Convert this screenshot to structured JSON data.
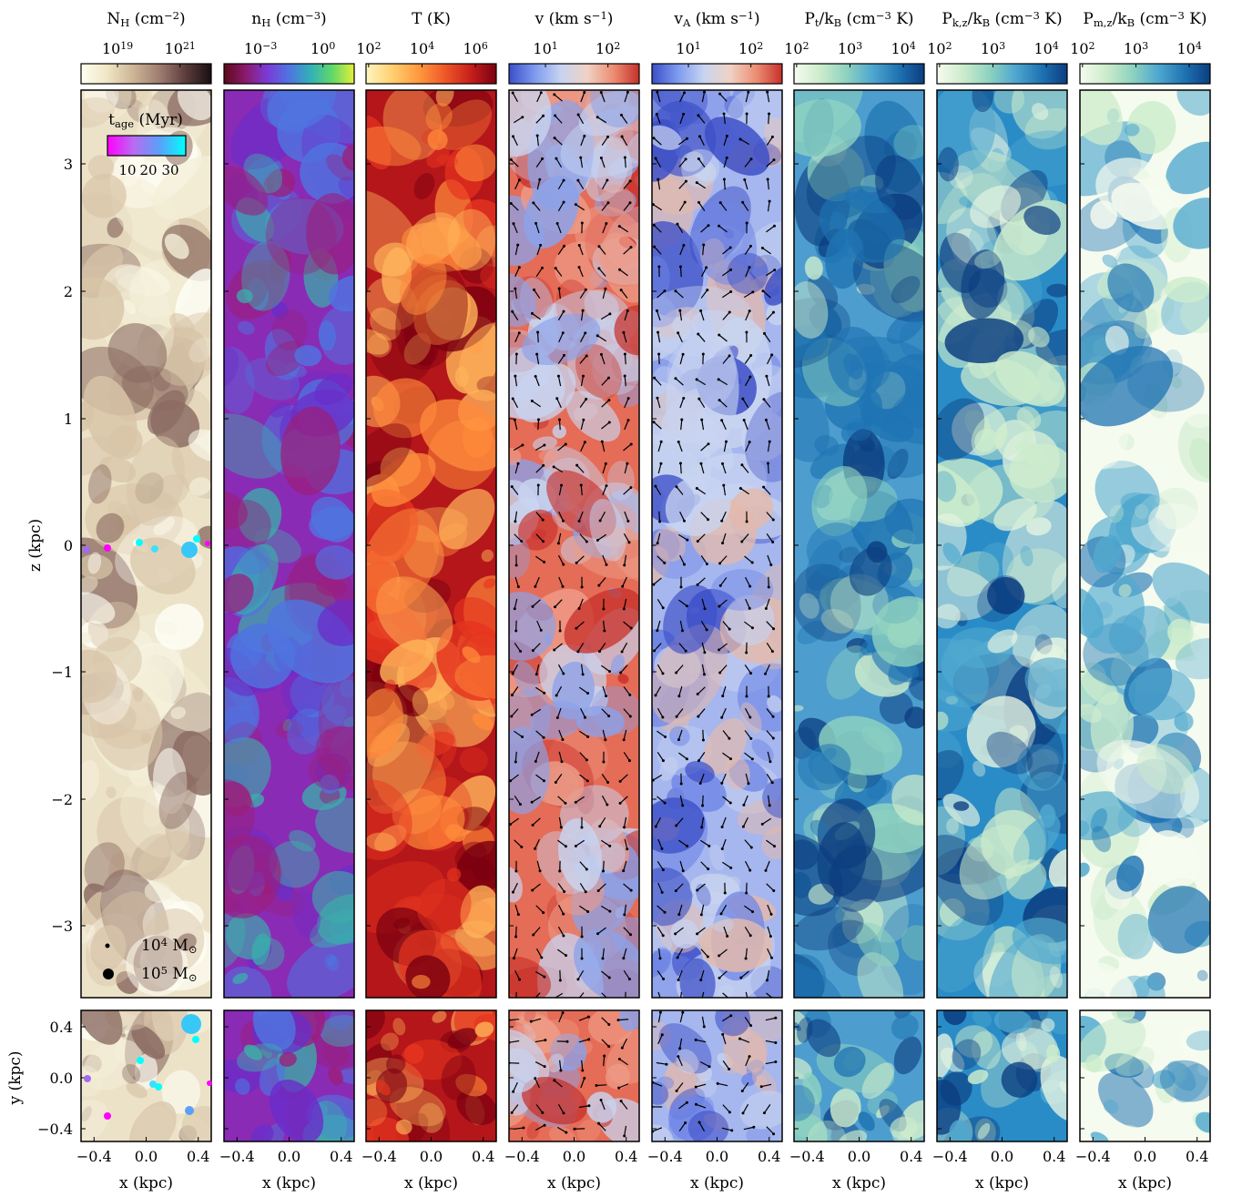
{
  "panels": [
    {
      "title": "N",
      "title_sub": "H",
      "title_unit": " (cm",
      "title_sup": "−2",
      "title_end": ")",
      "ticks": [
        {
          "base": "10",
          "exp": "19"
        },
        {
          "base": "10",
          "exp": "21"
        }
      ],
      "cmap": [
        "#fffff0",
        "#efe6c4",
        "#cdb596",
        "#9f7e70",
        "#5c3e3d",
        "#1a0e10"
      ]
    },
    {
      "title": "n",
      "title_sub": "H",
      "title_unit": " (cm",
      "title_sup": "−3",
      "title_end": ")",
      "ticks": [
        {
          "base": "10",
          "exp": "−3"
        },
        {
          "base": "10",
          "exp": "0"
        }
      ],
      "cmap": [
        "#5a0a18",
        "#8c1a6e",
        "#7a3bd6",
        "#4f74e0",
        "#32b1b8",
        "#62d867",
        "#e4ef3a"
      ]
    },
    {
      "title": "T (K)",
      "title_sub": "",
      "title_unit": "",
      "title_sup": "",
      "title_end": "",
      "ticks": [
        {
          "base": "10",
          "exp": "2"
        },
        {
          "base": "10",
          "exp": "4"
        },
        {
          "base": "10",
          "exp": "6"
        }
      ],
      "cmap": [
        "#fff6c0",
        "#ffd070",
        "#ff9a40",
        "#f05a28",
        "#c8201c",
        "#7a0010"
      ]
    },
    {
      "title": "v (km s",
      "title_sub": "",
      "title_unit": "",
      "title_sup": "−1",
      "title_end": ")",
      "ticks": [
        {
          "base": "10",
          "exp": "1"
        },
        {
          "base": "10",
          "exp": "2"
        }
      ],
      "cmap": [
        "#3a4fc8",
        "#7f9bef",
        "#c8d4f0",
        "#f0d2c4",
        "#ec8e74",
        "#c6302a"
      ]
    },
    {
      "title": "v",
      "title_sub": "A",
      "title_unit": " (km s",
      "title_sup": "−1",
      "title_end": ")",
      "ticks": [
        {
          "base": "10",
          "exp": "1"
        },
        {
          "base": "10",
          "exp": "2"
        }
      ],
      "cmap": [
        "#3a4fc8",
        "#7f9bef",
        "#c8d4f0",
        "#f0d2c4",
        "#ec8e74",
        "#c6302a"
      ]
    },
    {
      "title": "P",
      "title_sub": "t",
      "title_unit": "/k",
      "title_sub2": "B",
      "title_rest": " (cm",
      "title_sup": "−3",
      "title_end": " K)",
      "ticks": [
        {
          "base": "10",
          "exp": "2"
        },
        {
          "base": "10",
          "exp": "3"
        },
        {
          "base": "10",
          "exp": "4"
        }
      ],
      "cmap": [
        "#f6fbef",
        "#cdeccc",
        "#8fd3c0",
        "#4fa8cf",
        "#1f74b3",
        "#0b3d80"
      ]
    },
    {
      "title": "P",
      "title_sub": "k,z",
      "title_unit": "/k",
      "title_sub2": "B",
      "title_rest": " (cm",
      "title_sup": "−3",
      "title_end": " K)",
      "ticks": [
        {
          "base": "10",
          "exp": "2"
        },
        {
          "base": "10",
          "exp": "3"
        },
        {
          "base": "10",
          "exp": "4"
        }
      ],
      "cmap": [
        "#f6fbef",
        "#cdeccc",
        "#8fd3c0",
        "#4fa8cf",
        "#1f74b3",
        "#0b3d80"
      ]
    },
    {
      "title": "P",
      "title_sub": "m,z",
      "title_unit": "/k",
      "title_sub2": "B",
      "title_rest": " (cm",
      "title_sup": "−3",
      "title_end": " K)",
      "ticks": [
        {
          "base": "10",
          "exp": "2"
        },
        {
          "base": "10",
          "exp": "3"
        },
        {
          "base": "10",
          "exp": "4"
        }
      ],
      "cmap": [
        "#f6fbef",
        "#cdeccc",
        "#8fd3c0",
        "#4fa8cf",
        "#1f74b3",
        "#0b3d80"
      ]
    }
  ],
  "z_axis": {
    "label": "z (kpc)",
    "ticks": [
      "3",
      "2",
      "1",
      "0",
      "−1",
      "−2",
      "−3"
    ]
  },
  "y_axis": {
    "label": "y (kpc)",
    "ticks": [
      "0.4",
      "0.0",
      "−0.4"
    ]
  },
  "x_axis": {
    "label": "x (kpc)",
    "ticks": [
      "−0.4",
      "0.0",
      "0.4"
    ]
  },
  "age_legend": {
    "title": "t",
    "title_sub": "age",
    "title_rest": " (Myr)",
    "ticks": [
      "10",
      "20",
      "30"
    ],
    "colors": [
      "#ff00ff",
      "#b86cf0",
      "#5aa0f8",
      "#00ffff"
    ]
  },
  "mass_legend": [
    {
      "base": "10",
      "exp": "4",
      "unit": "M",
      "sub": "⊙"
    },
    {
      "base": "10",
      "exp": "5",
      "unit": "M",
      "sub": "⊙"
    }
  ],
  "panel_styles": {
    "bg": [
      "#ece2c8",
      "#8a2bb5",
      "#b5161a",
      "#e56c57",
      "#a6b6ee",
      "#4d9ece",
      "#2a8cc7",
      "#f5fbee"
    ],
    "blobs": [
      [
        "#fffff6",
        "#d8c5a8",
        "#8b6b62",
        "#f4efd8"
      ],
      [
        "#6a2dc9",
        "#4f74e0",
        "#3aafab",
        "#9a1f7c"
      ],
      [
        "#7a0010",
        "#ffb45a",
        "#e6351f",
        "#ff8a3a"
      ],
      [
        "#c8302a",
        "#c8d4f0",
        "#8ba2ea",
        "#ee9b86"
      ],
      [
        "#3c4ec7",
        "#c8d4f0",
        "#6f86e6",
        "#e4b9ab"
      ],
      [
        "#cdeccc",
        "#1f74b3",
        "#8fd3c0",
        "#0b3d80"
      ],
      [
        "#0b3d80",
        "#cdeccc",
        "#4fa8cf",
        "#e9f6e2"
      ],
      [
        "#1f74b3",
        "#cdeccc",
        "#4fa8cf",
        "#f6fbef"
      ]
    ]
  }
}
